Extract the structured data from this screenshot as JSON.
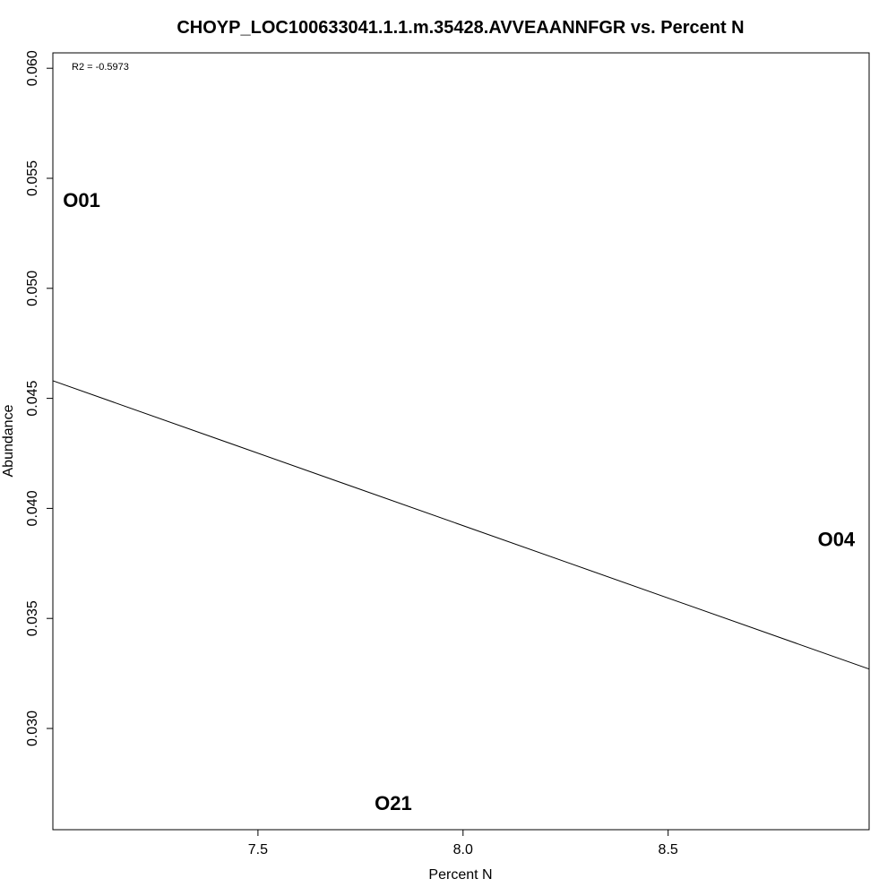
{
  "chart_data": {
    "type": "scatter",
    "title": "CHOYP_LOC100633041.1.1.m.35428.AVVEAANNFGR vs. Percent N",
    "xlabel": "Percent N",
    "ylabel": "Abundance",
    "xlim": [
      7.0,
      8.99
    ],
    "ylim": [
      0.0254,
      0.0607
    ],
    "x_ticks": [
      "7.5",
      "8.0",
      "8.5"
    ],
    "y_ticks": [
      "0.030",
      "0.035",
      "0.040",
      "0.045",
      "0.050",
      "0.055",
      "0.060"
    ],
    "points": [
      {
        "label": "O01",
        "x": 7.07,
        "y": 0.054
      },
      {
        "label": "O21",
        "x": 7.83,
        "y": 0.0266
      },
      {
        "label": "O04",
        "x": 8.91,
        "y": 0.0386
      }
    ],
    "regression_line": {
      "x": [
        7.0,
        8.99
      ],
      "y": [
        0.0458,
        0.0327
      ]
    },
    "annotation": "R2 = -0.5973",
    "grid": false,
    "legend": "none"
  }
}
